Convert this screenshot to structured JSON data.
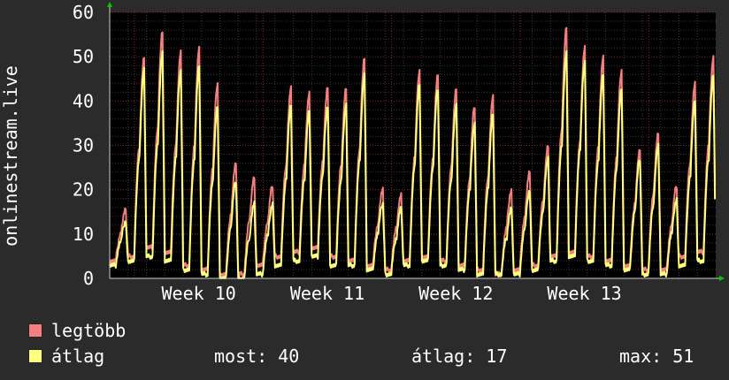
{
  "colors": {
    "background": "#2b2b2b",
    "plot_background": "#000000",
    "grid_major": "#8a2a2a",
    "grid_minor": "#3a3a3a",
    "text": "#ffffff",
    "max_series": "#f47f7f",
    "avg_series": "#ffff80",
    "axis_arrow": "#00cc00"
  },
  "chart_data": {
    "type": "line",
    "ylabel": "onlinestream.live",
    "ylim": [
      0,
      60
    ],
    "yticks": [
      "0",
      "10",
      "20",
      "30",
      "40",
      "50",
      "60"
    ],
    "xlabels": [
      "Week 10",
      "Week 11",
      "Week 12",
      "Week 13"
    ],
    "x_unit": "day",
    "day_count": 33,
    "grid": true,
    "legend_position": "bottom",
    "series": [
      {
        "name": "legtöbb",
        "color": "#f47f7f",
        "daily_peaks": [
          15.5,
          50,
          56,
          51,
          52,
          44,
          26,
          23,
          21,
          43,
          42,
          43,
          43,
          50,
          20,
          19,
          47,
          46,
          43,
          39,
          41,
          20,
          24,
          30,
          57,
          52,
          50,
          47,
          29,
          33,
          21,
          44,
          50
        ],
        "daily_troughs": [
          4,
          5,
          7,
          6,
          3,
          2,
          1,
          1,
          3,
          5,
          6,
          7,
          5,
          4,
          3,
          2,
          4,
          5,
          4,
          3,
          2,
          1,
          2,
          3,
          5,
          6,
          5,
          4,
          3,
          2,
          2,
          5,
          6
        ]
      },
      {
        "name": "átlag",
        "color": "#ffff80",
        "daily_peaks": [
          13,
          47,
          51,
          47,
          48,
          39,
          22,
          17,
          17,
          39,
          38,
          39,
          39,
          46,
          17,
          16,
          44,
          43,
          39,
          35,
          37,
          16,
          20,
          27,
          51,
          49,
          46,
          43,
          27,
          30,
          18,
          40,
          46
        ],
        "daily_troughs": [
          3,
          4,
          5,
          4,
          2,
          1,
          0,
          0,
          1,
          3,
          4,
          5,
          3,
          3,
          2,
          1,
          3,
          4,
          3,
          2,
          1,
          1,
          1,
          2,
          4,
          5,
          4,
          3,
          2,
          1,
          1,
          3,
          4
        ]
      }
    ]
  },
  "legend": {
    "items": [
      {
        "label": "legtöbb",
        "color": "#f47f7f"
      },
      {
        "label": "átlag",
        "color": "#ffff80"
      }
    ],
    "stats": {
      "most_label": "most:",
      "most_value": "40",
      "atlag_label": "átlag:",
      "atlag_value": "17",
      "max_label": "max:",
      "max_value": "51"
    }
  }
}
